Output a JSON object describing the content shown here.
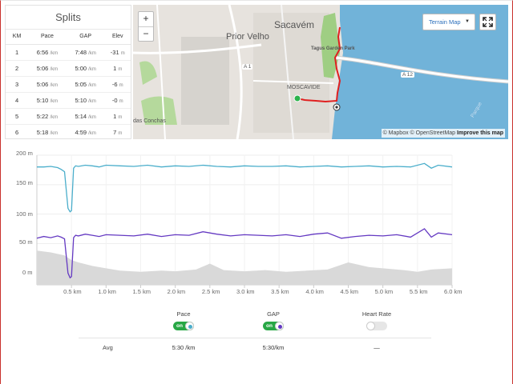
{
  "splits": {
    "title": "Splits",
    "columns": [
      "KM",
      "Pace",
      "GAP",
      "Elev"
    ],
    "rows": [
      {
        "km": "1",
        "pace": "6:56",
        "pace_unit": "/km",
        "gap": "7:48",
        "gap_unit": "/km",
        "elev": "-31",
        "elev_unit": "m"
      },
      {
        "km": "2",
        "pace": "5:06",
        "pace_unit": "/km",
        "gap": "5:00",
        "gap_unit": "/km",
        "elev": "1",
        "elev_unit": "m"
      },
      {
        "km": "3",
        "pace": "5:06",
        "pace_unit": "/km",
        "gap": "5:05",
        "gap_unit": "/km",
        "elev": "-6",
        "elev_unit": "m"
      },
      {
        "km": "4",
        "pace": "5:10",
        "pace_unit": "/km",
        "gap": "5:10",
        "gap_unit": "/km",
        "elev": "-0",
        "elev_unit": "m"
      },
      {
        "km": "5",
        "pace": "5:22",
        "pace_unit": "/km",
        "gap": "5:14",
        "gap_unit": "/km",
        "elev": "1",
        "elev_unit": "m"
      },
      {
        "km": "6",
        "pace": "5:18",
        "pace_unit": "/km",
        "gap": "4:59",
        "gap_unit": "/km",
        "elev": "7",
        "elev_unit": "m"
      }
    ]
  },
  "map": {
    "zoom_in_label": "+",
    "zoom_out_label": "−",
    "terrain_label": "Terrain Map",
    "fullscreen_icon": "fullscreen-icon",
    "place_labels": {
      "sacavem": "Sacavém",
      "prior_velho": "Prior Velho",
      "moscavide": "MOSCAVIDE",
      "tagus_park": "Tagus Garden Park",
      "conchas": "das Conchas",
      "a12": "A 12",
      "a1": "A 1",
      "parque": "Parque"
    },
    "attribution": {
      "mapbox": "© Mapbox",
      "osm": "© OpenStreetMap",
      "improve": "Improve this map"
    },
    "colors": {
      "water": "#71b3d9",
      "land": "#e7e3de",
      "park": "#9fce83",
      "route": "#e02020",
      "start": "#2bb24c"
    }
  },
  "chart": {
    "y_ticks": [
      "200 m",
      "150 m",
      "100 m",
      "50 m",
      "0 m"
    ],
    "x_ticks": [
      "0.5 km",
      "1.0 km",
      "1.5 km",
      "2.0 km",
      "2.5 km",
      "3.0 km",
      "3.5 km",
      "4.0 km",
      "4.5 km",
      "5.0 km",
      "5.5 km",
      "6.0 km"
    ]
  },
  "chart_data": {
    "type": "line",
    "xlim": [
      0,
      6.0
    ],
    "ylim": [
      -20,
      200
    ],
    "grid": true,
    "x_ticks": [
      0.5,
      1.0,
      1.5,
      2.0,
      2.5,
      3.0,
      3.5,
      4.0,
      4.5,
      5.0,
      5.5,
      6.0
    ],
    "y_ticks": [
      0,
      50,
      100,
      150,
      200
    ],
    "series": [
      {
        "name": "",
        "type": "line",
        "color": "#4aaecb",
        "x": [
          0,
          0.1,
          0.2,
          0.3,
          0.35,
          0.4,
          0.45,
          0.48,
          0.5,
          0.53,
          0.56,
          0.6,
          0.7,
          0.8,
          0.9,
          1.0,
          1.2,
          1.4,
          1.6,
          1.8,
          2.0,
          2.2,
          2.4,
          2.6,
          2.8,
          3.0,
          3.2,
          3.4,
          3.6,
          3.8,
          4.0,
          4.2,
          4.4,
          4.6,
          4.8,
          5.0,
          5.2,
          5.4,
          5.6,
          5.7,
          5.8,
          6.0
        ],
        "y": [
          180,
          180,
          181,
          179,
          176,
          172,
          110,
          104,
          106,
          178,
          182,
          181,
          183,
          182,
          180,
          183,
          182,
          181,
          183,
          180,
          182,
          181,
          183,
          181,
          180,
          182,
          181,
          181,
          182,
          180,
          181,
          182,
          180,
          181,
          182,
          180,
          181,
          180,
          186,
          178,
          183,
          180
        ]
      },
      {
        "name": "",
        "type": "line",
        "color": "#6439c2",
        "x": [
          0,
          0.1,
          0.2,
          0.3,
          0.35,
          0.4,
          0.45,
          0.48,
          0.5,
          0.53,
          0.56,
          0.6,
          0.7,
          0.8,
          0.9,
          1.0,
          1.2,
          1.4,
          1.6,
          1.8,
          2.0,
          2.2,
          2.4,
          2.6,
          2.8,
          3.0,
          3.2,
          3.4,
          3.6,
          3.8,
          4.0,
          4.2,
          4.4,
          4.6,
          4.8,
          5.0,
          5.2,
          5.4,
          5.6,
          5.7,
          5.8,
          6.0
        ],
        "y": [
          59,
          62,
          60,
          63,
          61,
          58,
          0,
          -8,
          -6,
          60,
          64,
          63,
          66,
          64,
          62,
          65,
          64,
          63,
          66,
          62,
          65,
          64,
          70,
          66,
          63,
          65,
          64,
          63,
          65,
          62,
          66,
          68,
          59,
          62,
          64,
          63,
          65,
          61,
          75,
          61,
          68,
          65
        ]
      },
      {
        "name": "",
        "type": "area",
        "color": "#d9d9d9",
        "x": [
          0,
          0.2,
          0.4,
          0.5,
          0.6,
          0.8,
          1.0,
          1.2,
          1.5,
          1.8,
          2.0,
          2.3,
          2.5,
          2.7,
          3.0,
          3.3,
          3.6,
          3.9,
          4.2,
          4.5,
          4.8,
          5.0,
          5.3,
          5.5,
          5.7,
          6.0
        ],
        "y": [
          38,
          35,
          30,
          22,
          18,
          12,
          8,
          4,
          2,
          4,
          3,
          6,
          16,
          5,
          3,
          5,
          2,
          4,
          6,
          18,
          10,
          8,
          5,
          2,
          6,
          8
        ]
      }
    ]
  },
  "legend": {
    "avg_label": "Avg",
    "items": [
      {
        "name": "Pace",
        "state": "on",
        "on_text": "on",
        "color": "#4aaecb",
        "avg": "5:30 /km"
      },
      {
        "name": "GAP",
        "state": "on",
        "on_text": "on",
        "color": "#6439c2",
        "avg": "5:30/km"
      },
      {
        "name": "Heart Rate",
        "state": "off",
        "on_text": "",
        "color": "#cccccc",
        "avg": "—"
      }
    ]
  }
}
